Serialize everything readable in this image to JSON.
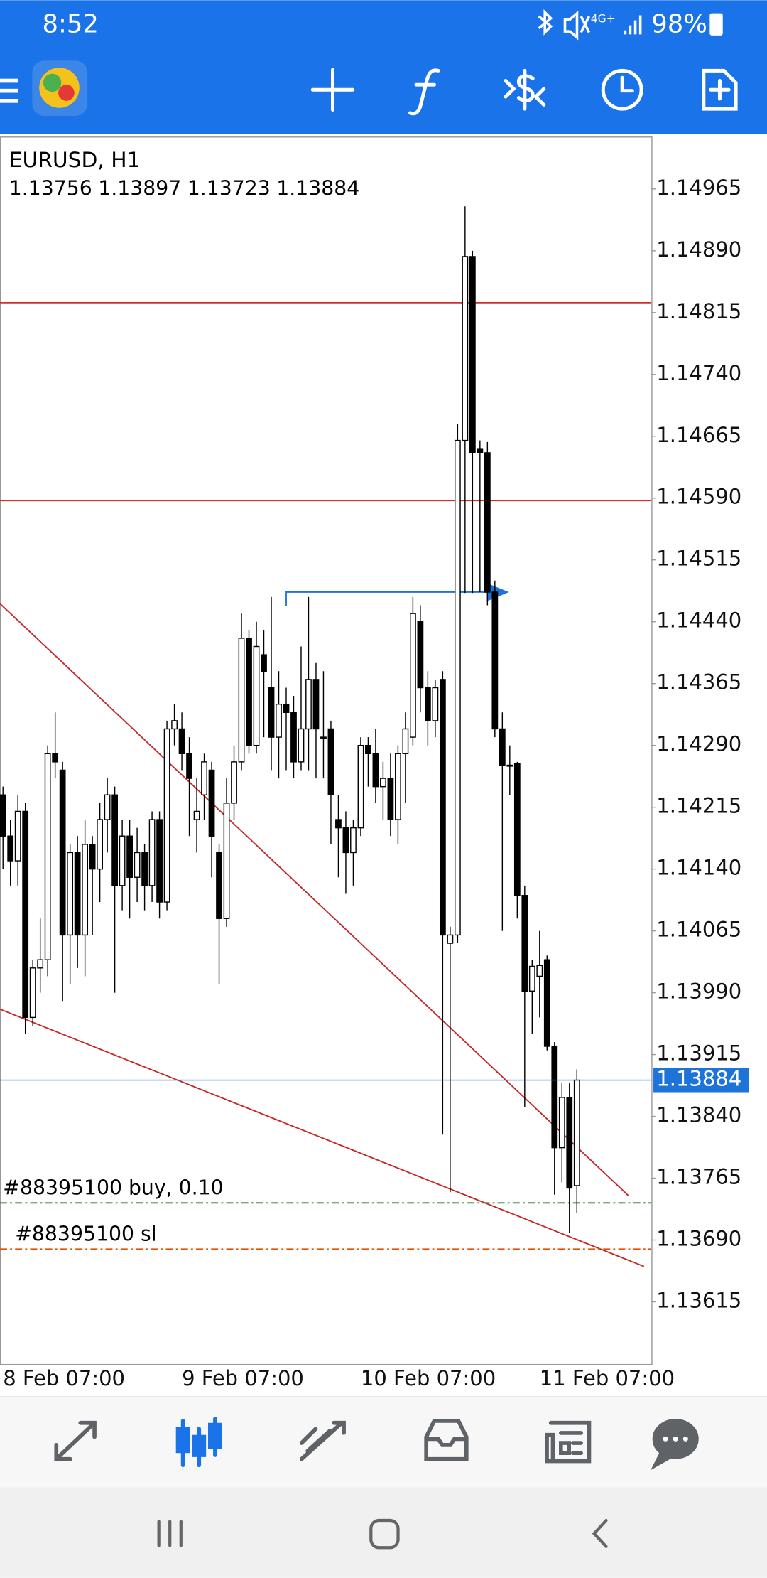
{
  "status_bar": {
    "time": "8:52",
    "network": "4G+",
    "battery": "98%"
  },
  "chart_data": {
    "type": "candlestick",
    "title": "EURUSD, H1",
    "categories": [
      "8 Feb 07:00",
      null,
      null,
      null,
      null,
      null,
      null,
      null,
      null,
      null,
      null,
      null,
      null,
      null,
      null,
      null,
      null,
      null,
      null,
      null,
      null,
      null,
      null,
      null,
      "9 Feb 07:00",
      null,
      null,
      null,
      null,
      null,
      null,
      null,
      null,
      null,
      null,
      null,
      null,
      null,
      null,
      null,
      null,
      null,
      null,
      null,
      null,
      null,
      null,
      null,
      "10 Feb 07:00",
      null,
      null,
      null,
      null,
      null,
      null,
      null,
      null,
      null,
      null,
      null,
      null,
      null,
      null,
      null,
      null,
      null,
      null,
      null,
      null,
      null,
      null,
      null,
      "11 Feb 07:00",
      null,
      null,
      null,
      null,
      null
    ],
    "ohlc": [
      [
        1.1423,
        1.1424,
        1.1414,
        1.1418
      ],
      [
        1.1418,
        1.142,
        1.1412,
        1.1415
      ],
      [
        1.1415,
        1.1423,
        1.1412,
        1.1421
      ],
      [
        1.1421,
        1.1422,
        1.1394,
        1.1396
      ],
      [
        1.1396,
        1.1403,
        1.1395,
        1.1402
      ],
      [
        1.1402,
        1.1408,
        1.1399,
        1.1403
      ],
      [
        1.1403,
        1.1429,
        1.1401,
        1.1428
      ],
      [
        1.1428,
        1.1433,
        1.1425,
        1.1427
      ],
      [
        1.1426,
        1.1427,
        1.1398,
        1.1406
      ],
      [
        1.1406,
        1.1417,
        1.14,
        1.1416
      ],
      [
        1.1416,
        1.1418,
        1.1402,
        1.1406
      ],
      [
        1.1406,
        1.142,
        1.1401,
        1.1417
      ],
      [
        1.1417,
        1.1418,
        1.1406,
        1.1414
      ],
      [
        1.1414,
        1.1422,
        1.141,
        1.142
      ],
      [
        1.142,
        1.1425,
        1.1416,
        1.1423
      ],
      [
        1.1423,
        1.1424,
        1.1399,
        1.1412
      ],
      [
        1.1412,
        1.142,
        1.1409,
        1.1418
      ],
      [
        1.1418,
        1.142,
        1.1408,
        1.1413
      ],
      [
        1.1413,
        1.1419,
        1.141,
        1.1416
      ],
      [
        1.1416,
        1.1417,
        1.1409,
        1.1412
      ],
      [
        1.1412,
        1.1421,
        1.141,
        1.142
      ],
      [
        1.142,
        1.1421,
        1.1408,
        1.141
      ],
      [
        1.141,
        1.1432,
        1.1409,
        1.1431
      ],
      [
        1.1431,
        1.1434,
        1.1429,
        1.1432
      ],
      [
        1.1431,
        1.1433,
        1.1426,
        1.1428
      ],
      [
        1.1428,
        1.143,
        1.1418,
        1.1425
      ],
      [
        1.142,
        1.1425,
        1.1416,
        1.1421
      ],
      [
        1.1423,
        1.1428,
        1.142,
        1.1427
      ],
      [
        1.1426,
        1.1427,
        1.1413,
        1.1418
      ],
      [
        1.1416,
        1.1417,
        1.14,
        1.1408
      ],
      [
        1.1408,
        1.1425,
        1.1407,
        1.1422
      ],
      [
        1.1422,
        1.1429,
        1.142,
        1.1427
      ],
      [
        1.1427,
        1.1445,
        1.1426,
        1.1442
      ],
      [
        1.1442,
        1.1443,
        1.1428,
        1.1429
      ],
      [
        1.1429,
        1.1444,
        1.1428,
        1.1441
      ],
      [
        1.144,
        1.1443,
        1.143,
        1.1438
      ],
      [
        1.1436,
        1.1447,
        1.1426,
        1.143
      ],
      [
        1.143,
        1.1438,
        1.1425,
        1.1434
      ],
      [
        1.1434,
        1.1436,
        1.1426,
        1.1433
      ],
      [
        1.1433,
        1.1435,
        1.1425,
        1.1427
      ],
      [
        1.1427,
        1.1441,
        1.1426,
        1.1431
      ],
      [
        1.1431,
        1.1447,
        1.1426,
        1.1437
      ],
      [
        1.1437,
        1.1439,
        1.1425,
        1.1431
      ],
      [
        1.143,
        1.1438,
        1.1425,
        1.143
      ],
      [
        1.1431,
        1.1432,
        1.1417,
        1.1423
      ],
      [
        1.142,
        1.1423,
        1.1413,
        1.1419
      ],
      [
        1.1419,
        1.1421,
        1.1411,
        1.1416
      ],
      [
        1.1416,
        1.142,
        1.1412,
        1.1419
      ],
      [
        1.1419,
        1.143,
        1.1418,
        1.1429
      ],
      [
        1.1429,
        1.143,
        1.1424,
        1.1428
      ],
      [
        1.1428,
        1.1431,
        1.1422,
        1.1424
      ],
      [
        1.1424,
        1.1427,
        1.142,
        1.1425
      ],
      [
        1.1425,
        1.1428,
        1.1418,
        1.142
      ],
      [
        1.142,
        1.1429,
        1.1417,
        1.1428
      ],
      [
        1.1428,
        1.1433,
        1.1422,
        1.1431
      ],
      [
        1.143,
        1.1447,
        1.1429,
        1.1445
      ],
      [
        1.1444,
        1.1446,
        1.1433,
        1.1436
      ],
      [
        1.1436,
        1.1438,
        1.1429,
        1.1432
      ],
      [
        1.1432,
        1.1437,
        1.143,
        1.1436
      ],
      [
        1.1437,
        1.1438,
        1.13818,
        1.1406
      ],
      [
        1.1405,
        1.1407,
        1.13748,
        1.1406
      ],
      [
        1.1406,
        1.1468,
        1.1405,
        1.1466
      ],
      [
        1.1466,
        1.14944,
        1.14475,
        1.14883
      ],
      [
        1.14883,
        1.1489,
        1.14475,
        1.14645
      ],
      [
        1.1465,
        1.1466,
        1.14476,
        1.14645
      ],
      [
        1.14645,
        1.14658,
        1.1446,
        1.14476
      ],
      [
        1.14476,
        1.1449,
        1.143,
        1.1431
      ],
      [
        1.1431,
        1.1433,
        1.14065,
        1.14266
      ],
      [
        1.14266,
        1.1429,
        1.1423,
        1.14265
      ],
      [
        1.14268,
        1.1427,
        1.1408,
        1.14108
      ],
      [
        1.14108,
        1.1412,
        1.13851,
        1.13992
      ],
      [
        1.13992,
        1.1403,
        1.1394,
        1.14022
      ],
      [
        1.1401,
        1.14065,
        1.1396,
        1.14023
      ],
      [
        1.1403,
        1.14035,
        1.1392,
        1.13925
      ],
      [
        1.13925,
        1.1393,
        1.13745,
        1.13802
      ],
      [
        1.13802,
        1.1388,
        1.1376,
        1.13863
      ],
      [
        1.13863,
        1.1388,
        1.13699,
        1.13753
      ],
      [
        1.13756,
        1.13897,
        1.13723,
        1.13884
      ]
    ],
    "xlim": [
      -0.4,
      87
    ],
    "ylim": [
      1.13539,
      1.15028
    ],
    "yticks": [
      1.14965,
      {
        "value": 1.1489,
        "label": "1.14890"
      },
      1.14815,
      {
        "value": 1.1474,
        "label": "1.14740"
      },
      1.14665,
      {
        "value": 1.1459,
        "label": "1.14590"
      },
      1.14515,
      {
        "value": 1.1444,
        "label": "1.14440"
      },
      1.14365,
      {
        "value": 1.1429,
        "label": "1.14290"
      },
      1.14215,
      {
        "value": 1.1414,
        "label": "1.14140"
      },
      1.14065,
      {
        "value": 1.1399,
        "label": "1.13990"
      },
      1.13915,
      {
        "value": 1.1384,
        "label": "1.13840"
      },
      1.13765,
      {
        "value": 1.1369,
        "label": "1.13690"
      },
      1.13615
    ],
    "bull_color": "#ffffff",
    "bear_color": "#000000",
    "price_line_color": "#1e73d8",
    "hlines": [
      {
        "value": 1.14827,
        "color": "#d32f2f"
      },
      {
        "value": 1.14587,
        "color": "#d32f2f"
      }
    ],
    "trendlines": [
      {
        "x": [
          -0.4,
          83.9
        ],
        "y": [
          1.14462,
          1.13744
        ],
        "color": "#c62828"
      },
      {
        "x": [
          -0.4,
          86
        ],
        "y": [
          1.1397,
          1.13658
        ],
        "color": "#c62828"
      }
    ],
    "trade_line": {
      "x": [
        38,
        66
      ],
      "y": 1.14476,
      "color": "#1e73d8"
    },
    "orders": [
      {
        "label": "#88395100 buy, 0.10",
        "price": 1.13735,
        "color": "#2e7d32"
      },
      {
        "label": "#88395100 sl",
        "price": 1.13679,
        "color": "#e65100"
      }
    ]
  }
}
